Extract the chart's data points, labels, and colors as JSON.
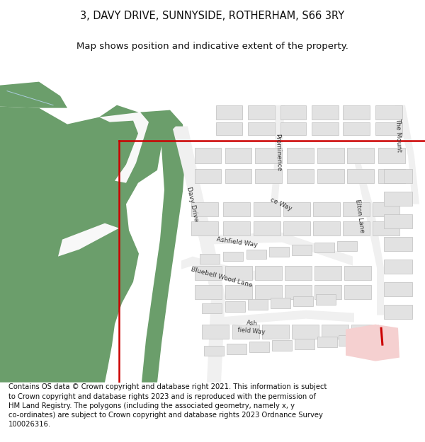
{
  "title_line1": "3, DAVY DRIVE, SUNNYSIDE, ROTHERHAM, S66 3RY",
  "title_line2": "Map shows position and indicative extent of the property.",
  "footer": "Contains OS data © Crown copyright and database right 2021. This information is subject\nto Crown copyright and database rights 2023 and is reproduced with the permission of\nHM Land Registry. The polygons (including the associated geometry, namely x, y\nco-ordinates) are subject to Crown copyright and database rights 2023 Ordnance Survey\n100026316.",
  "bg_color": "#ffffff",
  "map_bg": "#f2f2f2",
  "green_color": "#6b9e6b",
  "road_color": "#f0f0f0",
  "building_color": "#e2e2e2",
  "building_edge": "#c0c0c0",
  "red_boundary": "#cc0000",
  "pink_fill": "#f5d0d0",
  "title_fontsize": 10.5,
  "subtitle_fontsize": 9.5,
  "footer_fontsize": 7.2,
  "label_fontsize": 6.5,
  "label_color": "#333333"
}
